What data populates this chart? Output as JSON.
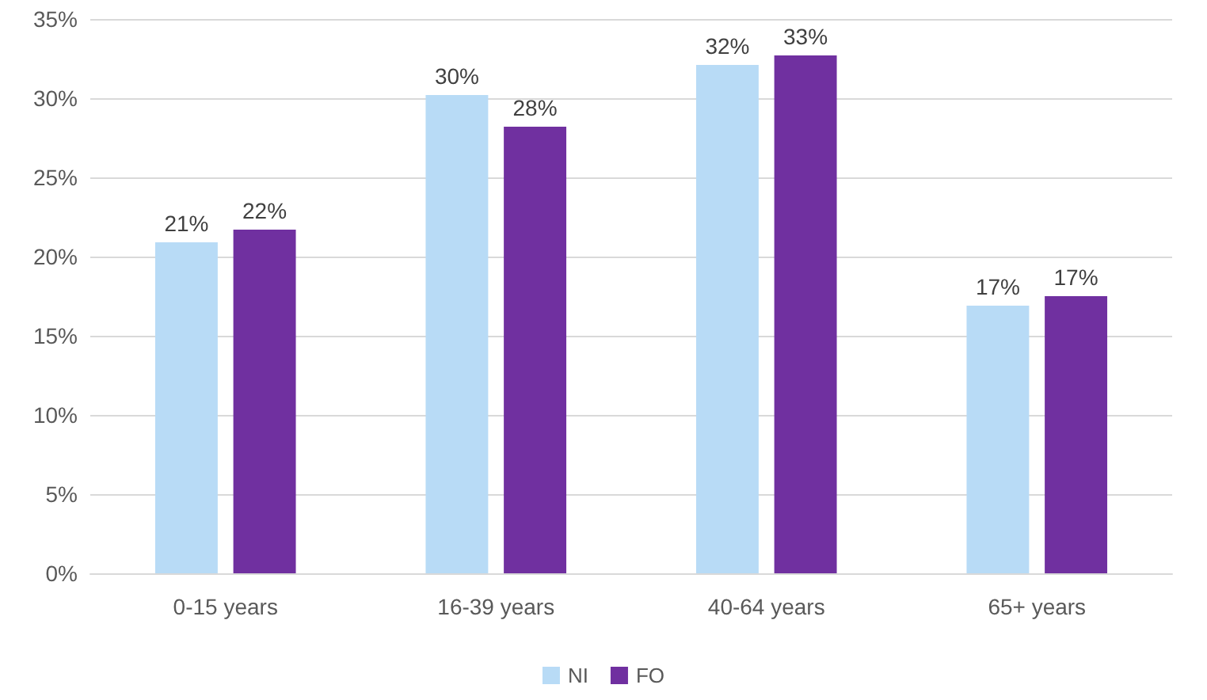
{
  "chart_data": {
    "type": "bar",
    "categories": [
      "0-15 years",
      "16-39 years",
      "40-64 years",
      "65+ years"
    ],
    "series": [
      {
        "name": "NI",
        "color": "#b8dbf6",
        "values": [
          20.9,
          30.2,
          32.1,
          16.9
        ],
        "value_labels": [
          "21%",
          "30%",
          "32%",
          "17%"
        ]
      },
      {
        "name": "FO",
        "color": "#7030a0",
        "values": [
          21.7,
          28.2,
          32.7,
          17.5
        ],
        "value_labels": [
          "22%",
          "28%",
          "33%",
          "17%"
        ]
      }
    ],
    "ylim": [
      0,
      35
    ],
    "yticks": [
      {
        "value": 0,
        "label": "0%"
      },
      {
        "value": 5,
        "label": "5%"
      },
      {
        "value": 10,
        "label": "10%"
      },
      {
        "value": 15,
        "label": "15%"
      },
      {
        "value": 20,
        "label": "20%"
      },
      {
        "value": 25,
        "label": "25%"
      },
      {
        "value": 30,
        "label": "30%"
      },
      {
        "value": 35,
        "label": "35%"
      }
    ],
    "grid": "y",
    "legend": "bottom"
  }
}
